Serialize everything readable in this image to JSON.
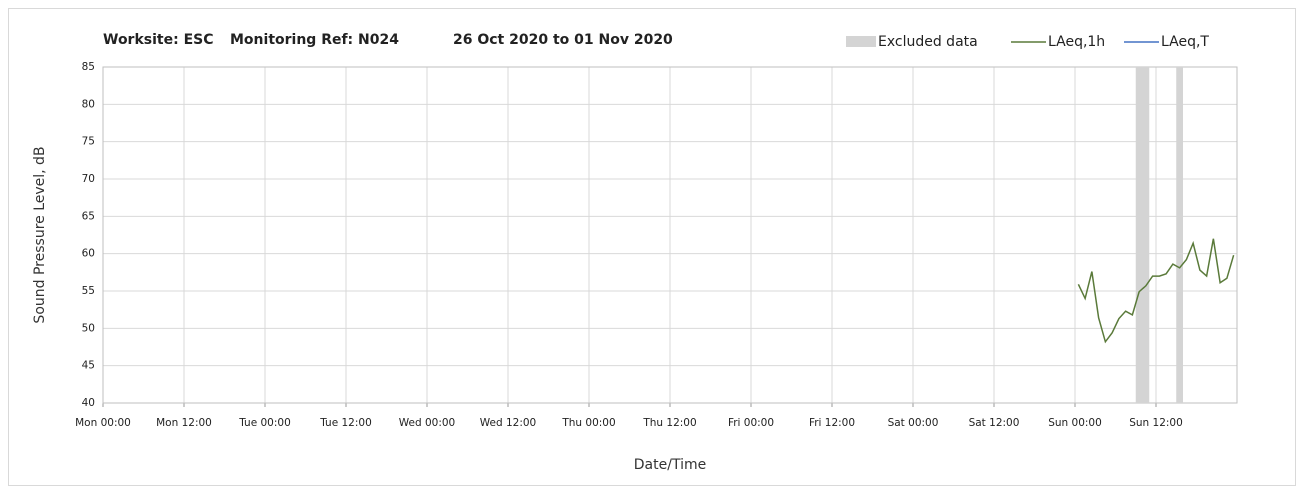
{
  "chart_data": {
    "type": "line",
    "title": [
      "Worksite: ESC",
      "Monitoring Ref: N024",
      "26 Oct 2020 to 01 Nov 2020"
    ],
    "xlabel": "Date/Time",
    "ylabel": "Sound Pressure Level, dB",
    "x": [
      144.5,
      145.5,
      146.5,
      147.5,
      148.5,
      149.5,
      150.5,
      151.5,
      152.5,
      153.5,
      154.5,
      155.5,
      156.5,
      157.5,
      158.5,
      159.5,
      160.5,
      161.5,
      162.5,
      163.5,
      164.5,
      165.5,
      166.5,
      167.5
    ],
    "series": [
      {
        "name": "LAeq,1h",
        "color": "#5a7a3a",
        "values": [
          55.9,
          54,
          57.6,
          51.4,
          48.2,
          49.4,
          51.3,
          52.3,
          51.8,
          54.9,
          55.7,
          57,
          57,
          57.3,
          58.6,
          58.1,
          59.2,
          61.4,
          57.8,
          57,
          62,
          56.1,
          56.7,
          59.8
        ]
      },
      {
        "name": "LAeq,T",
        "color": "#4472c4",
        "values": [
          null,
          null,
          null,
          null,
          null,
          null,
          null,
          null,
          null,
          null,
          null,
          null,
          null,
          null,
          null,
          null,
          null,
          null,
          null,
          null,
          null,
          null,
          null,
          null
        ]
      }
    ],
    "excluded": {
      "name": "Excluded data",
      "color": "#d4d4d4",
      "ranges": [
        [
          153,
          155
        ],
        [
          159,
          160
        ]
      ]
    },
    "xlim": [
      0,
      168
    ],
    "xticks": [
      {
        "value": 0,
        "label": "Mon 00:00"
      },
      {
        "value": 12,
        "label": "Mon 12:00"
      },
      {
        "value": 24,
        "label": "Tue 00:00"
      },
      {
        "value": 36,
        "label": "Tue 12:00"
      },
      {
        "value": 48,
        "label": "Wed 00:00"
      },
      {
        "value": 60,
        "label": "Wed 12:00"
      },
      {
        "value": 72,
        "label": "Thu 00:00"
      },
      {
        "value": 84,
        "label": "Thu 12:00"
      },
      {
        "value": 96,
        "label": "Fri 00:00"
      },
      {
        "value": 108,
        "label": "Fri 12:00"
      },
      {
        "value": 120,
        "label": "Sat 00:00"
      },
      {
        "value": 132,
        "label": "Sat 12:00"
      },
      {
        "value": 144,
        "label": "Sun 00:00"
      },
      {
        "value": 156,
        "label": "Sun 12:00"
      }
    ],
    "ylim": [
      40,
      85
    ],
    "yticks": [
      40,
      45,
      50,
      55,
      60,
      65,
      70,
      75,
      80,
      85
    ],
    "grid": true
  }
}
